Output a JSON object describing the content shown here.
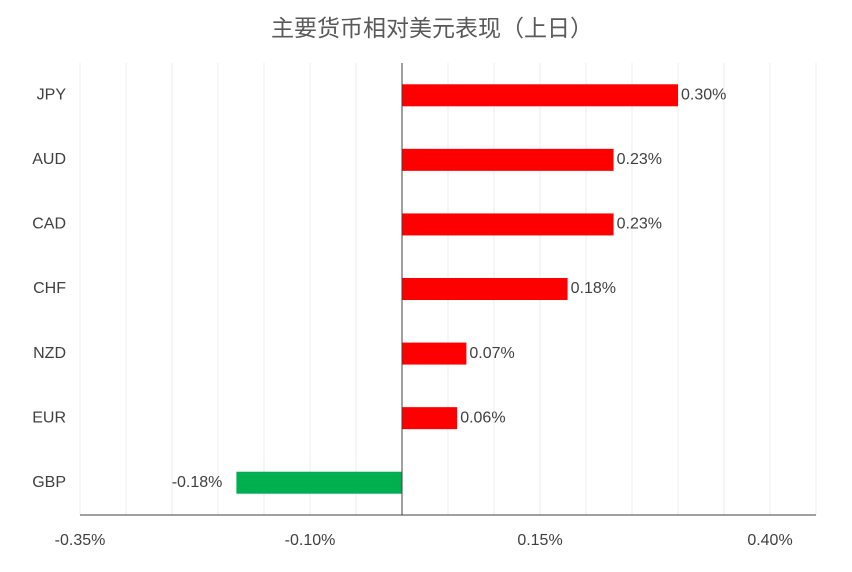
{
  "chart_data": {
    "type": "bar",
    "orientation": "horizontal",
    "title": "主要货币相对美元表现（上日）",
    "categories": [
      "JPY",
      "AUD",
      "CAD",
      "CHF",
      "NZD",
      "EUR",
      "GBP"
    ],
    "values": [
      0.3,
      0.23,
      0.23,
      0.18,
      0.07,
      0.06,
      -0.18
    ],
    "value_labels": [
      "0.30%",
      "0.23%",
      "0.23%",
      "0.18%",
      "0.07%",
      "0.06%",
      "-0.18%"
    ],
    "colors": [
      "#ff0000",
      "#ff0000",
      "#ff0000",
      "#ff0000",
      "#ff0000",
      "#ff0000",
      "#00b050"
    ],
    "xlim": [
      -0.35,
      0.45
    ],
    "xticks": [
      {
        "value": -0.35,
        "label": "-0.35%"
      },
      {
        "value": -0.1,
        "label": "-0.10%"
      },
      {
        "value": 0.15,
        "label": "0.15%"
      },
      {
        "value": 0.4,
        "label": "0.40%"
      }
    ],
    "x_minor_ticks": [
      -0.3,
      -0.25,
      -0.2,
      -0.15,
      -0.05,
      0,
      0.05,
      0.1,
      0.2,
      0.25,
      0.3,
      0.35,
      0.45
    ],
    "grid": true
  }
}
